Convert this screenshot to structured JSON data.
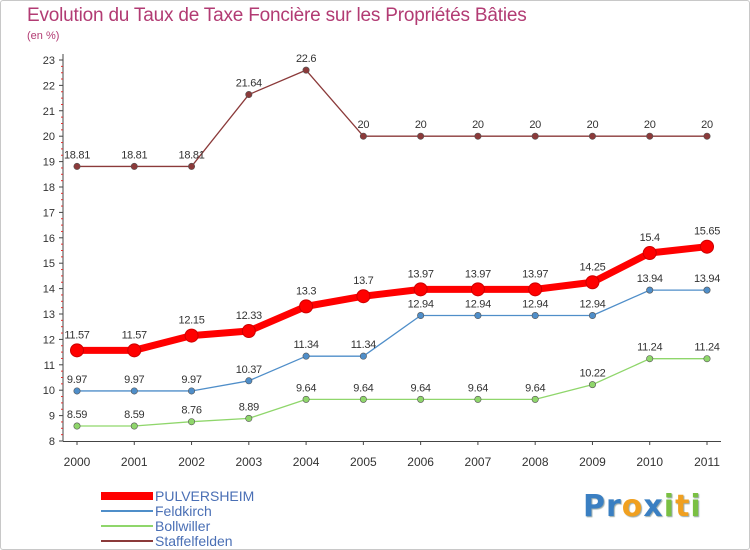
{
  "title": "Evolution du Taux de Taxe Foncière sur les Propriétés Bâties",
  "subtitle": "(en %)",
  "chart_data": {
    "type": "line",
    "x": [
      "2000",
      "2001",
      "2002",
      "2003",
      "2004",
      "2005",
      "2006",
      "2007",
      "2008",
      "2009",
      "2010",
      "2011"
    ],
    "ylim": [
      8,
      23
    ],
    "yticks": [
      8,
      9,
      10,
      11,
      12,
      13,
      14,
      15,
      16,
      17,
      18,
      19,
      20,
      21,
      22,
      23
    ],
    "grid": false,
    "legend_position": "bottom-left",
    "series": [
      {
        "name": "PULVERSHEIM",
        "color": "#ff0000",
        "values": [
          11.57,
          11.57,
          12.15,
          12.33,
          13.3,
          13.7,
          13.97,
          13.97,
          13.97,
          14.25,
          15.4,
          15.65
        ],
        "labels": [
          "11.57",
          "11.57",
          "12.15",
          "12.33",
          "13.3",
          "13.7",
          "13.97",
          "13.97",
          "13.97",
          "14.25",
          "15.4",
          "15.65"
        ]
      },
      {
        "name": "Feldkirch",
        "color": "#4f8ec9",
        "values": [
          9.97,
          9.97,
          9.97,
          10.37,
          11.34,
          11.34,
          12.94,
          12.94,
          12.94,
          12.94,
          13.94,
          13.94
        ],
        "labels": [
          "9.97",
          "9.97",
          "9.97",
          "10.37",
          "11.34",
          "11.34",
          "12.94",
          "12.94",
          "12.94",
          "12.94",
          "13.94",
          "13.94"
        ]
      },
      {
        "name": "Bollwiller",
        "color": "#8fd66b",
        "values": [
          8.59,
          8.59,
          8.76,
          8.89,
          9.64,
          9.64,
          9.64,
          9.64,
          9.64,
          10.22,
          11.24,
          11.24
        ],
        "labels": [
          "8.59",
          "8.59",
          "8.76",
          "8.89",
          "9.64",
          "9.64",
          "9.64",
          "9.64",
          "9.64",
          "10.22",
          "11.24",
          "11.24"
        ]
      },
      {
        "name": "Staffelfelden",
        "color": "#8b3a3a",
        "values": [
          18.81,
          18.81,
          18.81,
          21.64,
          22.6,
          20,
          20,
          20,
          20,
          20,
          20,
          20
        ],
        "labels": [
          "18.81",
          "18.81",
          "18.81",
          "21.64",
          "22.6",
          "20",
          "20",
          "20",
          "20",
          "20",
          "20",
          "20"
        ]
      }
    ]
  },
  "logo": {
    "letters": [
      {
        "char": "P",
        "color": "#3a7fc2"
      },
      {
        "char": "r",
        "color": "#3a7fc2"
      },
      {
        "char": "o",
        "color": "#f0a020"
      },
      {
        "char": "x",
        "color": "#3a7fc2"
      },
      {
        "char": "i",
        "color": "#7ac043"
      },
      {
        "char": "t",
        "color": "#f0a020"
      },
      {
        "char": "i",
        "color": "#7ac043"
      }
    ]
  }
}
